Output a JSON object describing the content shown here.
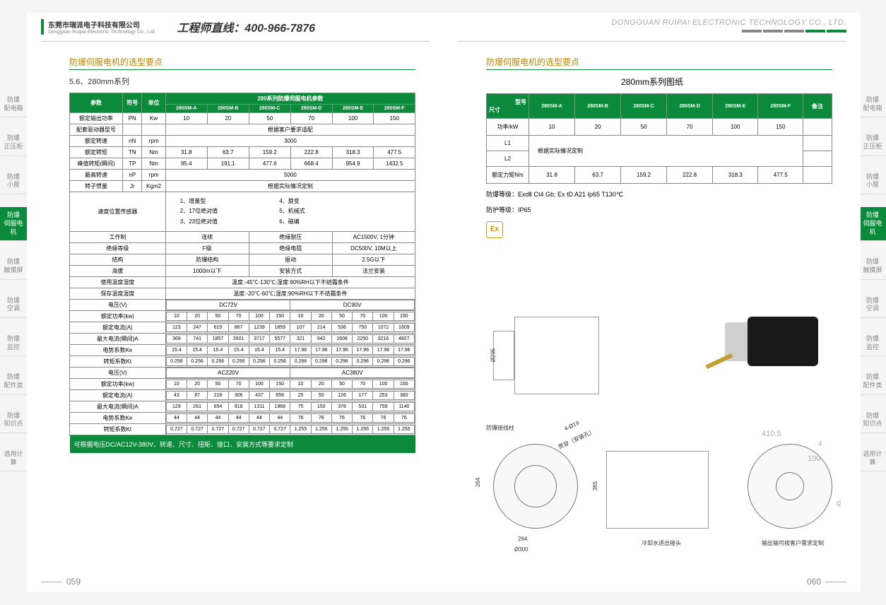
{
  "header": {
    "company_cn": "东莞市瑞派电子科技有限公司",
    "company_en": "Dongguan Ruipai Electronic Technology Co., Ltd.",
    "hotline": "工程师直线：400-966-7876",
    "company_right": "DONGGUAN RUIPAI ELECTRONIC TECHNOLOGY CO., LTD.",
    "bar_colors": [
      "#888",
      "#888",
      "#888",
      "#0a8a3a",
      "#0a8a3a"
    ]
  },
  "sidebar": {
    "items": [
      {
        "label": "防爆\n配电箱",
        "active": false
      },
      {
        "label": "防爆\n正压柜",
        "active": false
      },
      {
        "label": "防爆\n小屋",
        "active": false
      },
      {
        "label": "防爆\n伺服电机",
        "active": true
      },
      {
        "label": "防爆\n触摸屏",
        "active": false
      },
      {
        "label": "防爆\n空调",
        "active": false
      },
      {
        "label": "防爆\n监控",
        "active": false
      },
      {
        "label": "防爆\n配件类",
        "active": false
      },
      {
        "label": "防爆\n知识点",
        "active": false
      },
      {
        "label": "选用计算",
        "active": false
      }
    ]
  },
  "left": {
    "section_title": "防爆伺服电机的选型要点",
    "subtitle": "5.6、280mm系列",
    "param_header": "参数",
    "symbol_header": "符号",
    "unit_header": "单位",
    "series_header": "280系列防爆伺服电机参数",
    "models": [
      "280SM-A",
      "280SM-B",
      "280SM-C",
      "280SM-D",
      "280SM-E",
      "280SM-F"
    ],
    "rows": [
      {
        "p": "额定输出功率",
        "s": "PN",
        "u": "Kw",
        "v": [
          "10",
          "20",
          "50",
          "70",
          "100",
          "150"
        ]
      },
      {
        "p": "配套驱动器型号",
        "s": "",
        "u": "",
        "merged": "根据客户要求适配"
      },
      {
        "p": "额定转速",
        "s": "nN",
        "u": "rpm",
        "merged": "3000"
      },
      {
        "p": "额定转矩",
        "s": "TN",
        "u": "Nm",
        "v": [
          "31.8",
          "63.7",
          "159.2",
          "222.8",
          "318.3",
          "477.5"
        ]
      },
      {
        "p": "峰值转矩(瞬间)",
        "s": "TP",
        "u": "Nm",
        "v": [
          "95.4",
          "191.1",
          "477.6",
          "668.4",
          "954.9",
          "1432.5"
        ]
      },
      {
        "p": "最高转速",
        "s": "nP",
        "u": "rpm",
        "merged": "5000"
      },
      {
        "p": "转子惯量",
        "s": "Jr",
        "u": "Kgm2",
        "merged": "根据实际情况定制"
      }
    ],
    "sensor_row": {
      "p": "速度位置传感器",
      "cells": [
        "1、增量型",
        "4、旋变",
        "2、17位绝对值",
        "5、机械式",
        "3、23位绝对值",
        "6、磁编"
      ]
    },
    "misc_rows": [
      {
        "a": "工作制",
        "b": "连续",
        "c": "绝缘耐压",
        "d": "AC1500V, 1分钟"
      },
      {
        "a": "绝缘等级",
        "b": "F级",
        "c": "绝缘电阻",
        "d": "DC500V, 10M以上"
      },
      {
        "a": "结构",
        "b": "防爆结构",
        "c": "振动",
        "d": "2.5G以下"
      },
      {
        "a": "海拔",
        "b": "1000m以下",
        "c": "安装方式",
        "d": "法兰安装"
      },
      {
        "a": "使用温度湿度",
        "bspan": "温度:-45℃-130℃;湿度:90%RH以下不结霜条件"
      },
      {
        "a": "保存温度湿度",
        "bspan": "温度:-20℃-60℃;湿度:90%RH以下不结霜条件"
      }
    ],
    "voltage_block": {
      "label": "电压(V)",
      "v1": "DC72V",
      "v2": "DC90V",
      "rows": [
        {
          "p": "额定功率(kw)",
          "a": [
            "10",
            "20",
            "50",
            "70",
            "100",
            "150"
          ],
          "b": [
            "10",
            "20",
            "50",
            "70",
            "100",
            "150"
          ]
        },
        {
          "p": "额定电流(A)",
          "a": [
            "123",
            "247",
            "619",
            "867",
            "1239",
            "1859"
          ],
          "b": [
            "107",
            "214",
            "536",
            "750",
            "1072",
            "1609"
          ]
        },
        {
          "p": "最大电流(瞬间)A",
          "a": [
            "369",
            "741",
            "1857",
            "2601",
            "3717",
            "5577"
          ],
          "b": [
            "321",
            "642",
            "1608",
            "2250",
            "3216",
            "4827"
          ]
        },
        {
          "p": "电势系数Ke",
          "a": [
            "15.4",
            "15.4",
            "15.4",
            "15.4",
            "15.4",
            "15.4"
          ],
          "b": [
            "17.96",
            "17.96",
            "17.96",
            "17.96",
            "17.96",
            "17.96"
          ]
        },
        {
          "p": "转矩系数Kt",
          "a": [
            "0.256",
            "0.256",
            "0.256",
            "0.256",
            "0.256",
            "0.256"
          ],
          "b": [
            "0.296",
            "0.296",
            "0.296",
            "0.296",
            "0.296",
            "0.296"
          ]
        }
      ]
    },
    "voltage_block2": {
      "label": "电压(V)",
      "v1": "AC220V",
      "v2": "AC380V",
      "rows": [
        {
          "p": "额定功率(kw)",
          "a": [
            "10",
            "20",
            "50",
            "70",
            "100",
            "150"
          ],
          "b": [
            "10",
            "20",
            "50",
            "70",
            "100",
            "150"
          ]
        },
        {
          "p": "额定电流(A)",
          "a": [
            "43",
            "87",
            "218",
            "306",
            "437",
            "656"
          ],
          "b": [
            "25",
            "50",
            "126",
            "177",
            "253",
            "380"
          ]
        },
        {
          "p": "最大电流(瞬间)A",
          "a": [
            "129",
            "261",
            "654",
            "918",
            "1311",
            "1968"
          ],
          "b": [
            "75",
            "150",
            "378",
            "531",
            "759",
            "1140"
          ]
        },
        {
          "p": "电势系数Ke",
          "a": [
            "44",
            "44",
            "44",
            "44",
            "44",
            "44"
          ],
          "b": [
            "76",
            "76",
            "76",
            "76",
            "76",
            "76"
          ]
        },
        {
          "p": "转矩系数Kt",
          "a": [
            "0.727",
            "0.727",
            "0.727",
            "0.727",
            "0.727",
            "0.727"
          ],
          "b": [
            "1.255",
            "1.255",
            "1.255",
            "1.255",
            "1.255",
            "1.255"
          ]
        }
      ]
    },
    "footer": "可根据电压DC/AC12V-380V、转速、尺寸、扭矩、接口、安装方式等要求定制"
  },
  "right": {
    "section_title": "防爆伺服电机的选型要点",
    "drawing_title": "280mm系列图纸",
    "tbl_size": "尺寸",
    "tbl_model": "型号",
    "tbl_remark": "备注",
    "models": [
      "280SM-A",
      "280SM-B",
      "280SM-C",
      "280SM-D",
      "280SM-E",
      "280SM-F"
    ],
    "rows": [
      {
        "p": "功率/kW",
        "v": [
          "10",
          "20",
          "50",
          "70",
          "100",
          "150"
        ],
        "r": ""
      },
      {
        "p": "L1",
        "merged": "根据实际情况定制",
        "r": ""
      },
      {
        "p": "L2",
        "merged_continue": true,
        "r": ""
      },
      {
        "p": "额定力矩Nm",
        "v": [
          "31.8",
          "63.7",
          "159.2",
          "222.8",
          "318.3",
          "477.5"
        ],
        "r": ""
      }
    ],
    "note1": "防爆等级：ExdⅡ Ct4 Gb; Ex tD A21 Ip65 T130℃",
    "note2": "防护等级：IP65",
    "ex": "Ex",
    "drawing_labels": {
      "a": "防爆接线柱",
      "b": "4-Ø19",
      "c": "贯穿（安装孔）",
      "d": "410.5",
      "e": "4",
      "f": "100",
      "g": "264",
      "h": "365",
      "i": "Ø295",
      "j": "264",
      "k": "Ø300",
      "l": "45",
      "m": "冷却水进出接头",
      "n": "输出轴可按客户需求定制"
    }
  },
  "pagenum_left": "059",
  "pagenum_right": "060"
}
